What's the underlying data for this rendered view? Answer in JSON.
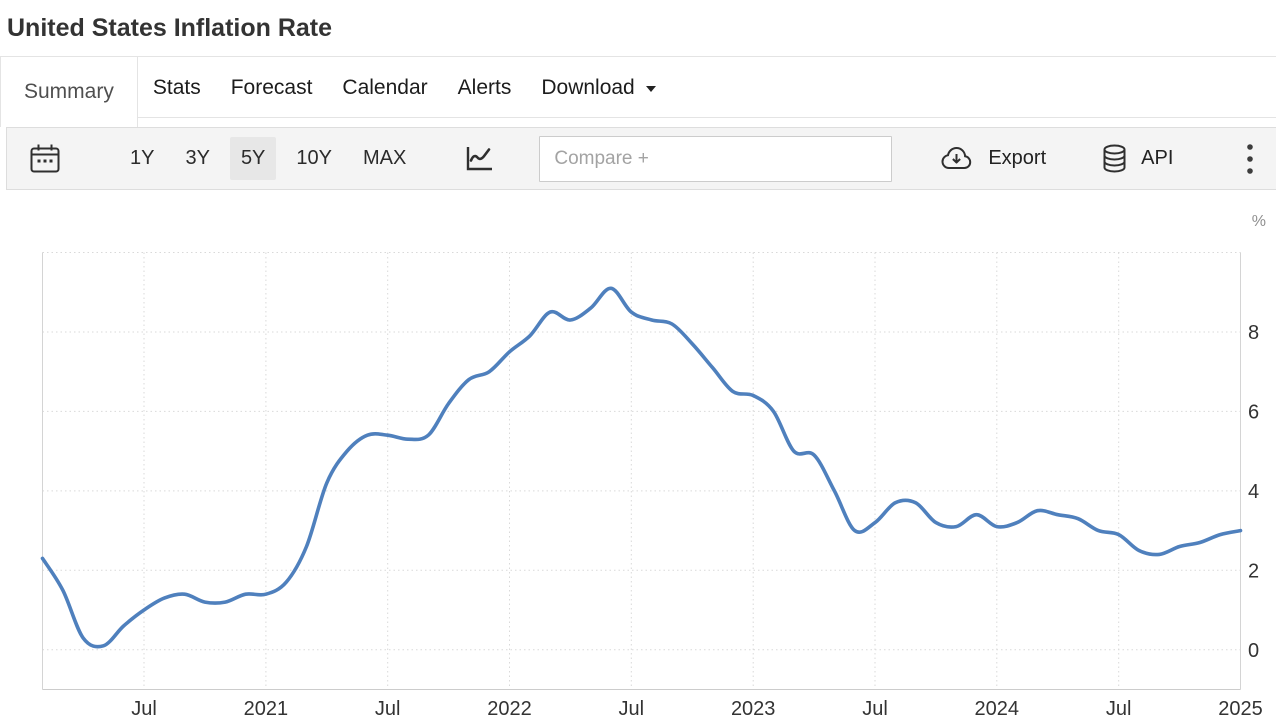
{
  "header": {
    "title": "United States Inflation Rate"
  },
  "tabs": [
    {
      "label": "Summary",
      "active": true
    },
    {
      "label": "Stats",
      "active": false
    },
    {
      "label": "Forecast",
      "active": false
    },
    {
      "label": "Calendar",
      "active": false
    },
    {
      "label": "Alerts",
      "active": false
    },
    {
      "label": "Download",
      "active": false,
      "has_dropdown": true
    }
  ],
  "toolbar": {
    "ranges": [
      {
        "label": "1Y",
        "active": false
      },
      {
        "label": "3Y",
        "active": false
      },
      {
        "label": "5Y",
        "active": true
      },
      {
        "label": "10Y",
        "active": false
      },
      {
        "label": "MAX",
        "active": false
      }
    ],
    "compare_placeholder": "Compare +",
    "export_label": "Export",
    "api_label": "API",
    "icons": {
      "left": "calendar-icon",
      "chart_type": "line-chart-icon",
      "export": "cloud-download-icon",
      "api": "database-icon",
      "menu": "kebab-menu-icon"
    }
  },
  "chart_data": {
    "type": "line",
    "title": "United States Inflation Rate",
    "unit": "%",
    "frequency": "monthly",
    "start_month": "2020-02",
    "values": [
      2.3,
      1.5,
      0.3,
      0.1,
      0.6,
      1.0,
      1.3,
      1.4,
      1.2,
      1.2,
      1.4,
      1.4,
      1.7,
      2.6,
      4.2,
      5.0,
      5.4,
      5.4,
      5.3,
      5.4,
      6.2,
      6.8,
      7.0,
      7.5,
      7.9,
      8.5,
      8.3,
      8.6,
      9.1,
      8.5,
      8.3,
      8.2,
      7.7,
      7.1,
      6.5,
      6.4,
      6.0,
      5.0,
      4.9,
      4.0,
      3.0,
      3.2,
      3.7,
      3.7,
      3.2,
      3.1,
      3.4,
      3.1,
      3.2,
      3.5,
      3.4,
      3.3,
      3.0,
      2.9,
      2.5,
      2.4,
      2.6,
      2.7,
      2.9,
      3.0
    ],
    "ylim": [
      -1,
      10
    ],
    "ytick_labels": [
      0,
      2,
      4,
      6,
      8
    ],
    "grid_y": [
      0,
      2,
      4,
      6,
      8,
      10
    ],
    "xticks": [
      {
        "label": "Jul",
        "month": "2020-07"
      },
      {
        "label": "2021",
        "month": "2021-01"
      },
      {
        "label": "Jul",
        "month": "2021-07"
      },
      {
        "label": "2022",
        "month": "2022-01"
      },
      {
        "label": "Jul",
        "month": "2022-07"
      },
      {
        "label": "2023",
        "month": "2023-01"
      },
      {
        "label": "Jul",
        "month": "2023-07"
      },
      {
        "label": "2024",
        "month": "2024-01"
      },
      {
        "label": "Jul",
        "month": "2024-07"
      },
      {
        "label": "2025",
        "month": "2025-01"
      }
    ],
    "line_color": "#4f80bd",
    "grid_color": "#d9d9d9",
    "axis_line_color": "#d4d4d4",
    "axis_text_color": "#333333",
    "unit_text_color": "#8f8f8f",
    "legend": "none",
    "grid": "dotted"
  }
}
